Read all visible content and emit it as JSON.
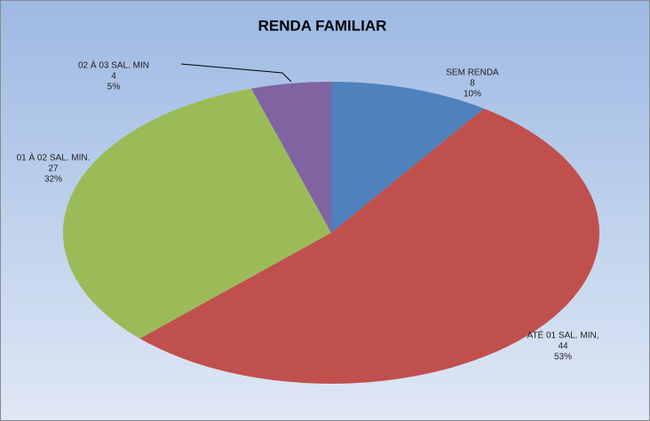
{
  "chart_data": {
    "type": "pie",
    "title": "RENDA FAMILIAR",
    "categories": [
      "SEM RENDA",
      "ATÉ 01 SAL. MIN,",
      "01 À 02 SAL. MIN.",
      "02 À 03 SAL. MIN"
    ],
    "values": [
      8,
      44,
      27,
      4
    ],
    "percentages": [
      10,
      53,
      32,
      5
    ],
    "percentage_labels": [
      "10%",
      "53%",
      "32%",
      "5%"
    ],
    "colors": [
      "#4f81bd",
      "#c0504d",
      "#9bbb59",
      "#8064a2"
    ]
  }
}
